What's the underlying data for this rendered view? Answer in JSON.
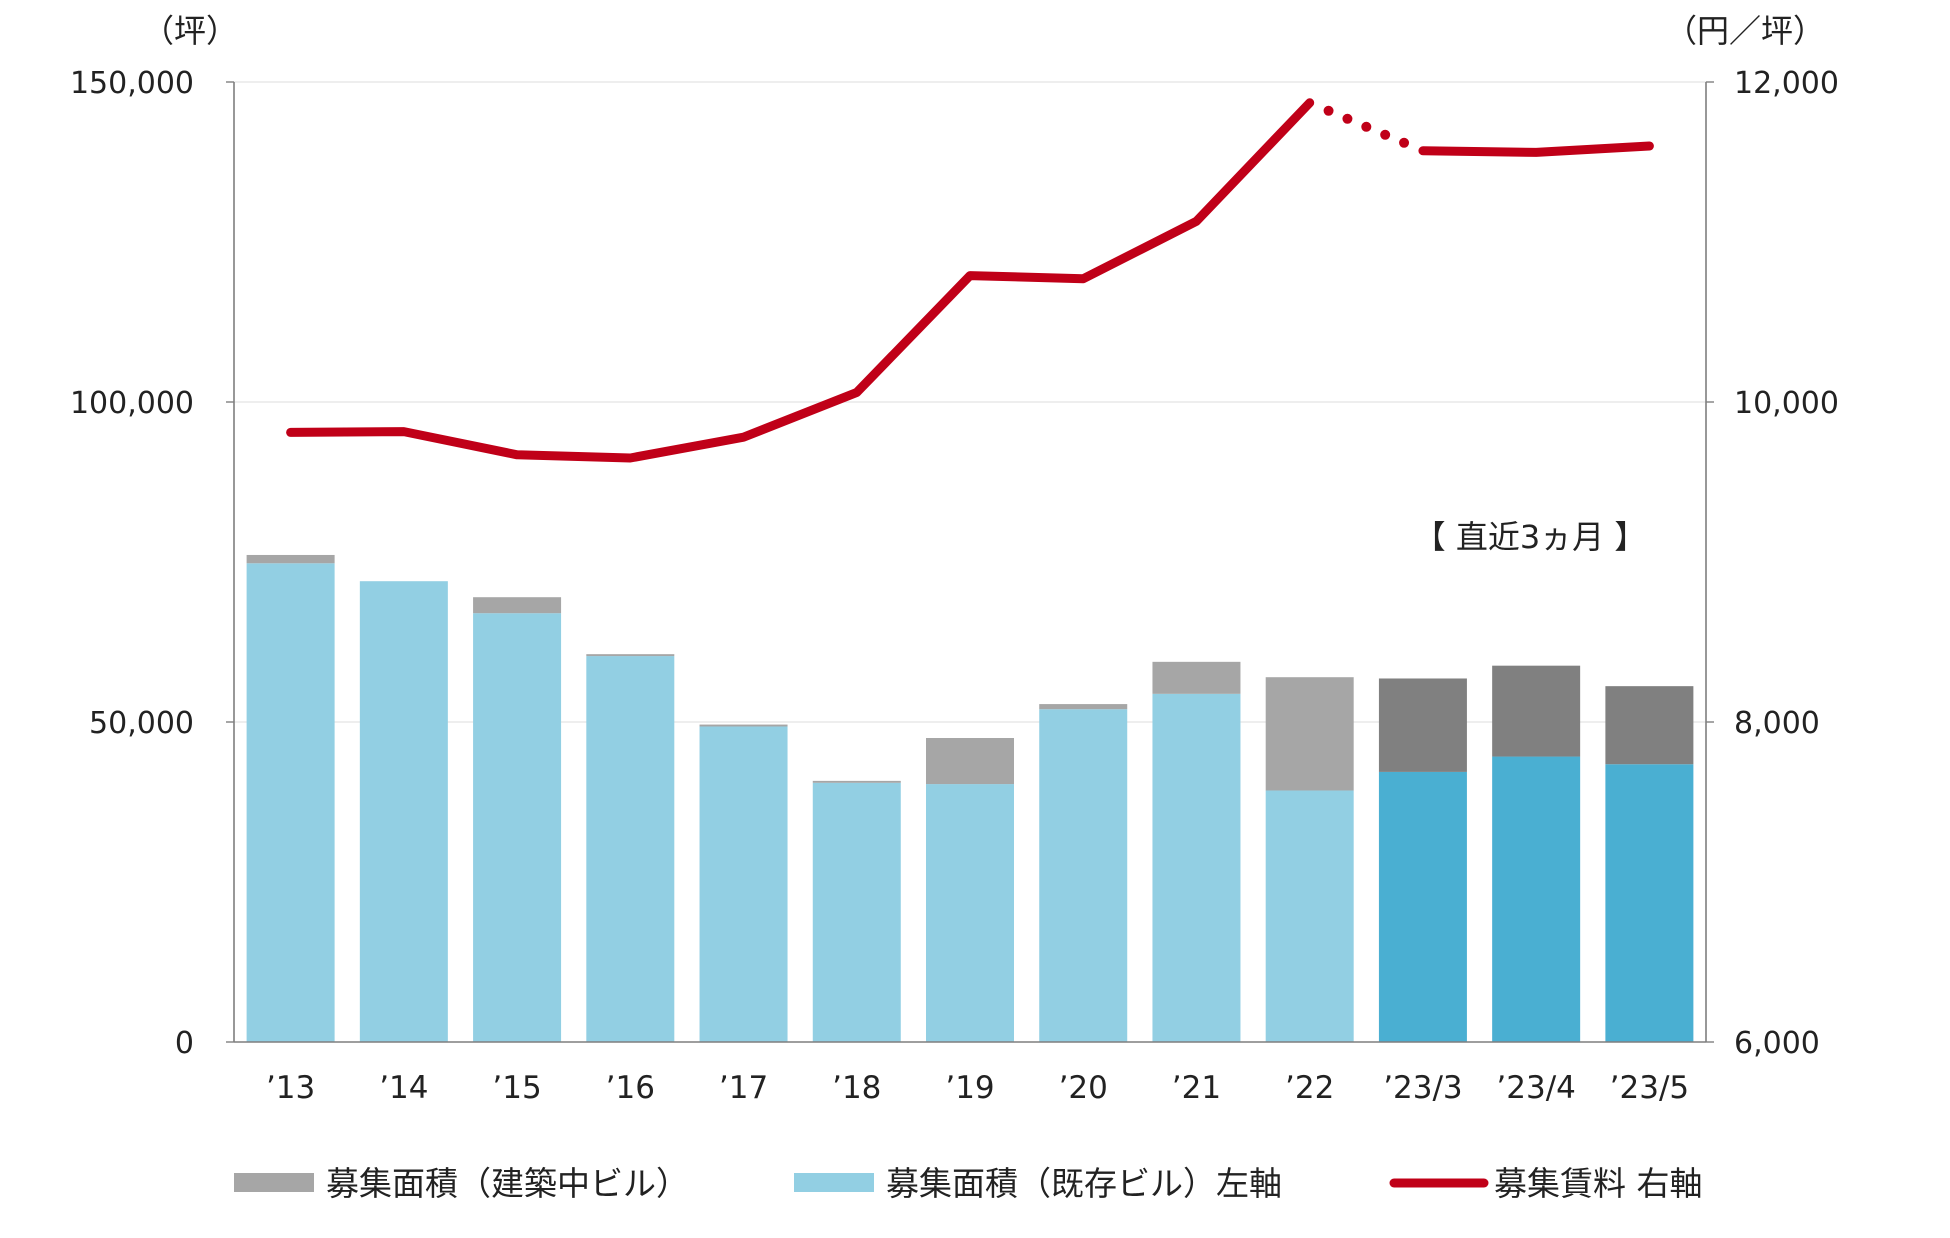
{
  "chart_data": {
    "type": "bar",
    "categories": [
      "’13",
      "’14",
      "’15",
      "’16",
      "’17",
      "’18",
      "’19",
      "’20",
      "’21",
      "’22",
      "’23/3",
      "’23/4",
      "’23/5"
    ],
    "series": [
      {
        "name": "募集面積（既存ビル）左軸",
        "type": "bar",
        "axis": "left",
        "values": [
          74800,
          72000,
          67000,
          60300,
          49300,
          40500,
          40300,
          52000,
          54400,
          39300,
          42200,
          44600,
          43400
        ],
        "colors": [
          "#92cfe3",
          "#92cfe3",
          "#92cfe3",
          "#92cfe3",
          "#92cfe3",
          "#92cfe3",
          "#92cfe3",
          "#92cfe3",
          "#92cfe3",
          "#92cfe3",
          "#4aafd2",
          "#4aafd2",
          "#4aafd2"
        ]
      },
      {
        "name": "募集面積（建築中ビル）",
        "type": "bar",
        "axis": "left",
        "values": [
          1300,
          0,
          2500,
          300,
          300,
          300,
          7200,
          800,
          5000,
          17700,
          14600,
          14200,
          12200
        ],
        "colors": [
          "#a6a6a6",
          "#a6a6a6",
          "#a6a6a6",
          "#a6a6a6",
          "#a6a6a6",
          "#a6a6a6",
          "#a6a6a6",
          "#a6a6a6",
          "#a6a6a6",
          "#a6a6a6",
          "#808080",
          "#808080",
          "#808080"
        ]
      },
      {
        "name": "募集賃料 右軸",
        "type": "line",
        "axis": "right",
        "values": [
          9810,
          9815,
          9670,
          9650,
          9780,
          10060,
          10790,
          10770,
          11130,
          11870,
          11570,
          11560,
          11600
        ],
        "color": "#c00018",
        "dotted_segment": [
          9,
          10
        ]
      }
    ],
    "left_axis": {
      "unit": "（坪）",
      "ylim": [
        0,
        150000
      ],
      "ticks": [
        "0",
        "50,000",
        "100,000",
        "150,000"
      ]
    },
    "right_axis": {
      "unit": "（円／坪）",
      "ylim": [
        6000,
        12000
      ],
      "ticks": [
        "6,000",
        "8,000",
        "10,000",
        "12,000"
      ]
    },
    "annotation": "【 直近3ヵ月 】",
    "grid": true,
    "legend_position": "bottom",
    "legend": [
      {
        "label": "募集面積（建築中ビル）",
        "color": "#a6a6a6",
        "kind": "bar"
      },
      {
        "label": "募集面積（既存ビル）左軸",
        "color": "#92cfe3",
        "kind": "bar"
      },
      {
        "label": "募集賃料 右軸",
        "color": "#c00018",
        "kind": "line"
      }
    ]
  }
}
